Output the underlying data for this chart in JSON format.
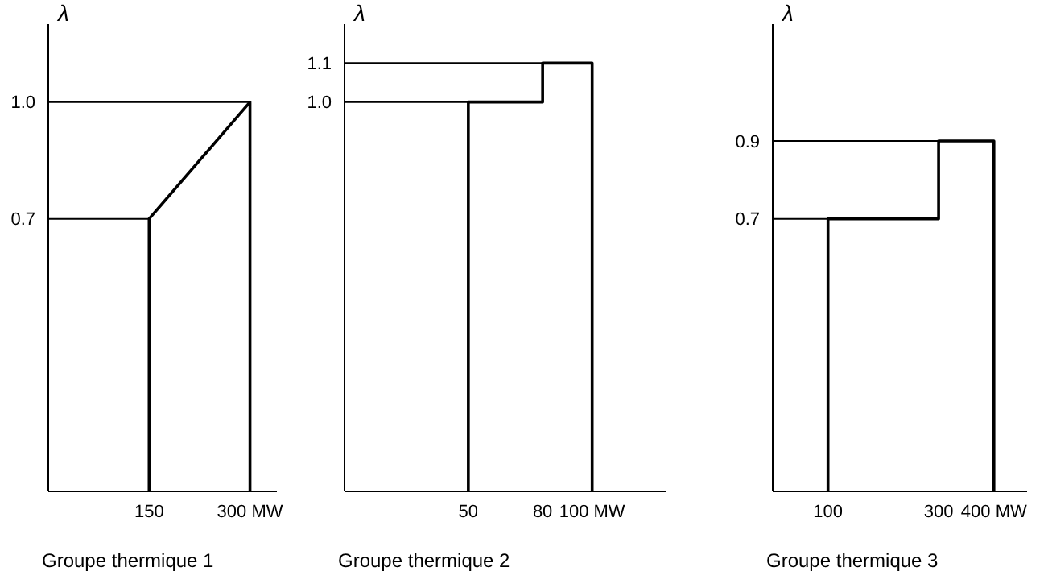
{
  "chart_data": [
    {
      "type": "line",
      "xlabel": "Groupe thermique 1",
      "ylabel": "λ",
      "xlim": [
        0,
        340
      ],
      "xticks": [
        150,
        {
          "value": 300,
          "label": "300 MW"
        }
      ],
      "ylim": [
        0,
        1.2
      ],
      "yticks": [
        0.7,
        {
          "value": 1,
          "label": "1.0"
        }
      ],
      "series": [
        {
          "color": "#000000",
          "x": [
            150,
            150,
            300,
            300
          ],
          "values": [
            0,
            0.7,
            1,
            0
          ]
        }
      ],
      "ref_lines": [
        {
          "axis": "y",
          "value": 0.7
        },
        {
          "axis": "y",
          "value": 1
        }
      ]
    },
    {
      "type": "line",
      "xlabel": "Groupe thermique 2",
      "ylabel": "λ",
      "xlim": [
        0,
        130
      ],
      "xticks": [
        50,
        80,
        {
          "value": 100,
          "label": "100 MW"
        }
      ],
      "ylim": [
        0,
        1.2
      ],
      "yticks": [
        {
          "value": 1,
          "label": "1.0"
        },
        1.1
      ],
      "series": [
        {
          "color": "#000000",
          "x": [
            50,
            50,
            80,
            80,
            100,
            100
          ],
          "values": [
            0,
            1,
            1,
            1.1,
            1.1,
            0
          ]
        }
      ],
      "ref_lines": [
        {
          "axis": "y",
          "value": 1
        },
        {
          "axis": "y",
          "value": 1.1
        }
      ]
    },
    {
      "type": "line",
      "xlabel": "Groupe thermique 3",
      "ylabel": "λ",
      "xlim": [
        0,
        460
      ],
      "xticks": [
        100,
        300,
        {
          "value": 400,
          "label": "400 MW"
        }
      ],
      "ylim": [
        0,
        1.2
      ],
      "yticks": [
        0.7,
        0.9
      ],
      "series": [
        {
          "color": "#000000",
          "x": [
            100,
            100,
            300,
            300,
            400,
            400
          ],
          "values": [
            0,
            0.7,
            0.7,
            0.9,
            0.9,
            0
          ]
        }
      ],
      "ref_lines": [
        {
          "axis": "y",
          "value": 0.7
        },
        {
          "axis": "y",
          "value": 0.9
        }
      ]
    }
  ]
}
